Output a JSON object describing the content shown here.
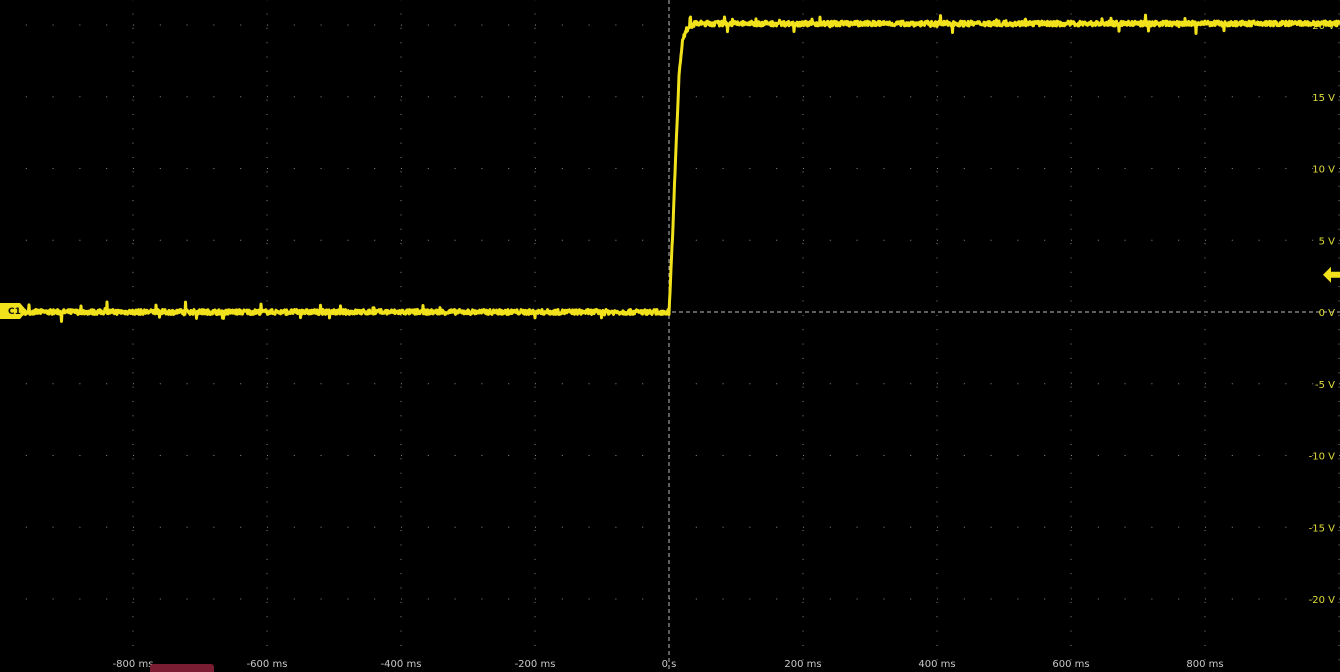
{
  "chart_data": {
    "type": "line",
    "title": "",
    "xlabel": "",
    "ylabel": "",
    "xlim": [
      -1000,
      1000
    ],
    "ylim": [
      -21.8,
      21.8
    ],
    "grid": true,
    "x_unit": "ms",
    "y_unit": "V",
    "x_ticks": [
      -800,
      -600,
      -400,
      -200,
      0,
      200,
      400,
      600,
      800
    ],
    "x_tick_labels": [
      "-800 ms",
      "-600 ms",
      "-400 ms",
      "-200 ms",
      "0 s",
      "200 ms",
      "400 ms",
      "600 ms",
      "800 ms"
    ],
    "y_ticks": [
      20,
      15,
      10,
      5,
      0,
      -5,
      -10,
      -15,
      -20
    ],
    "y_tick_labels": [
      "20 V",
      "15 V",
      "10 V",
      "5 V",
      "0 V",
      "-5 V",
      "-10 V",
      "-15 V",
      "-20 V"
    ],
    "series": [
      {
        "channel": "C1",
        "color": "#f2e21c",
        "x": [
          -1000,
          -500,
          0,
          5,
          10,
          15,
          20,
          25,
          30,
          40,
          60,
          100,
          500,
          1000
        ],
        "y": [
          0,
          0,
          0,
          5,
          11,
          16.5,
          18.8,
          19.6,
          19.9,
          20.1,
          20.1,
          20.1,
          20.1,
          20.1
        ]
      }
    ],
    "trigger_level": 2.6,
    "channel_marker": "C1"
  },
  "colors": {
    "background": "#000000",
    "trace": "#f2e21c",
    "grid": "#8a8a8a"
  }
}
